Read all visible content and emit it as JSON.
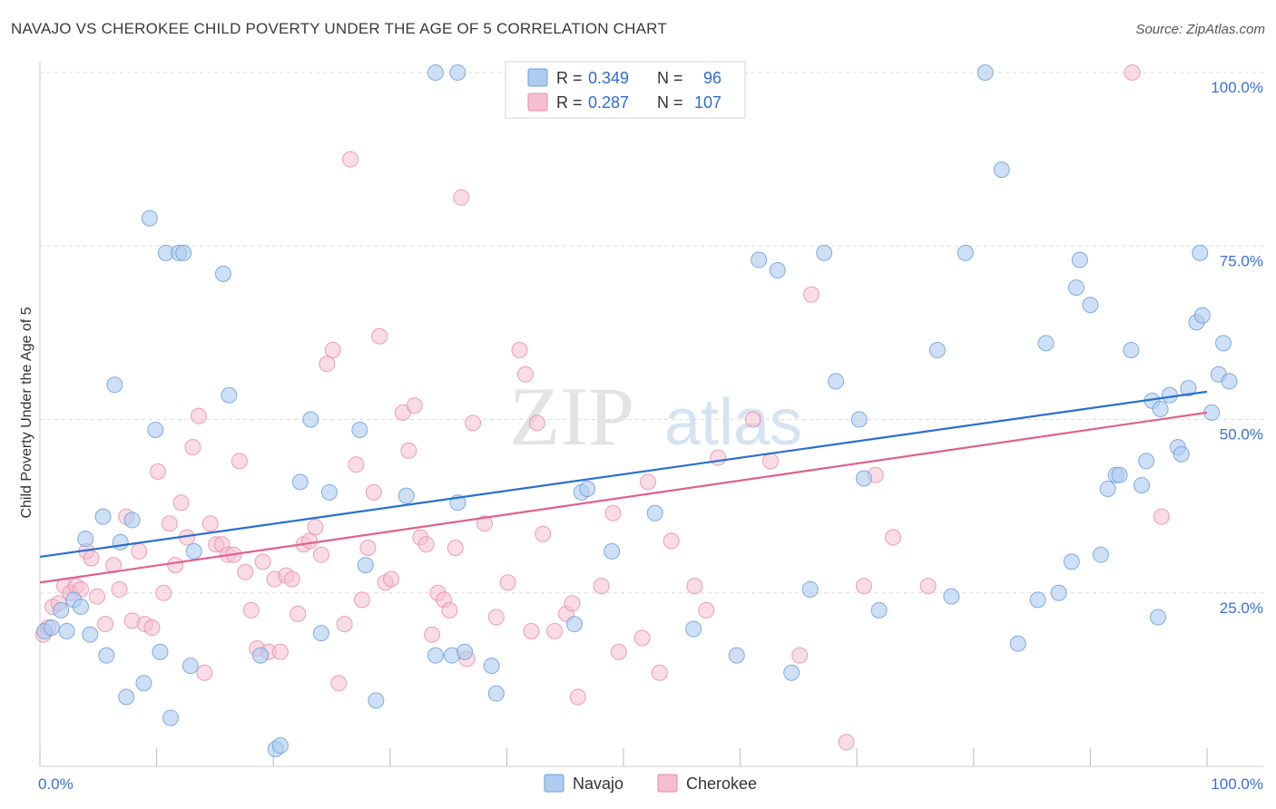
{
  "title": "NAVAJO VS CHEROKEE CHILD POVERTY UNDER THE AGE OF 5 CORRELATION CHART",
  "source": "Source: ZipAtlas.com",
  "watermark": {
    "zip": "ZIP",
    "atlas": "atlas"
  },
  "colors": {
    "navajo_fill": "#aecbf0",
    "navajo_stroke": "#6f9fdc",
    "navajo_line": "#2a6fd0",
    "cherokee_fill": "#f6bfd0",
    "cherokee_stroke": "#e88aa8",
    "cherokee_line": "#e06090",
    "tick_label": "#3b6fd4",
    "grid": "#dddddd"
  },
  "legend": {
    "navajo": {
      "r_label": "R =",
      "r_value": "0.349",
      "n_label": "N =",
      "n_value": "96"
    },
    "cherokee": {
      "r_label": "R =",
      "r_value": "0.287",
      "n_label": "N =",
      "n_value": "107"
    }
  },
  "bottom_legend": [
    "Navajo",
    "Cherokee"
  ],
  "chart_data": {
    "type": "scatter",
    "title": "NAVAJO VS CHEROKEE CHILD POVERTY UNDER THE AGE OF 5 CORRELATION CHART",
    "xlabel": "",
    "ylabel": "Child Poverty Under the Age of 5",
    "xlim": [
      0,
      100
    ],
    "ylim": [
      0,
      100
    ],
    "x_tick_labels": [
      "0.0%",
      "100.0%"
    ],
    "y_ticks": [
      25,
      50,
      75,
      100
    ],
    "y_tick_labels": [
      "25.0%",
      "50.0%",
      "75.0%",
      "100.0%"
    ],
    "grid": true,
    "legend_position": "top-center",
    "series": [
      {
        "name": "Navajo",
        "trend": [
          [
            0,
            30.2
          ],
          [
            100,
            54.0
          ]
        ],
        "points": [
          [
            0.4,
            19.5
          ],
          [
            1.0,
            20.0
          ],
          [
            1.8,
            22.5
          ],
          [
            2.3,
            19.5
          ],
          [
            2.9,
            24.0
          ],
          [
            3.5,
            23.0
          ],
          [
            3.9,
            32.8
          ],
          [
            4.3,
            19.0
          ],
          [
            5.4,
            36.0
          ],
          [
            5.7,
            16.0
          ],
          [
            6.4,
            55.0
          ],
          [
            6.9,
            32.3
          ],
          [
            7.4,
            10.0
          ],
          [
            7.9,
            35.5
          ],
          [
            8.9,
            12.0
          ],
          [
            9.4,
            79.0
          ],
          [
            9.9,
            48.5
          ],
          [
            10.3,
            16.5
          ],
          [
            10.8,
            74.0
          ],
          [
            11.2,
            7.0
          ],
          [
            11.9,
            74.0
          ],
          [
            12.3,
            74.0
          ],
          [
            12.9,
            14.5
          ],
          [
            13.2,
            31.0
          ],
          [
            15.7,
            71.0
          ],
          [
            16.2,
            53.5
          ],
          [
            18.9,
            16.0
          ],
          [
            20.2,
            2.5
          ],
          [
            20.6,
            3.0
          ],
          [
            22.3,
            41.0
          ],
          [
            23.2,
            50.0
          ],
          [
            24.1,
            19.2
          ],
          [
            24.8,
            39.5
          ],
          [
            27.4,
            48.5
          ],
          [
            27.9,
            29.0
          ],
          [
            28.8,
            9.5
          ],
          [
            31.4,
            39.0
          ],
          [
            33.9,
            100.0
          ],
          [
            33.9,
            16.0
          ],
          [
            35.3,
            16.0
          ],
          [
            35.8,
            100.0
          ],
          [
            35.8,
            38.0
          ],
          [
            36.4,
            16.5
          ],
          [
            38.7,
            14.5
          ],
          [
            39.1,
            10.5
          ],
          [
            45.8,
            20.5
          ],
          [
            46.4,
            39.5
          ],
          [
            46.9,
            40.0
          ],
          [
            49.0,
            31.0
          ],
          [
            52.7,
            36.5
          ],
          [
            56.0,
            19.8
          ],
          [
            61.6,
            73.0
          ],
          [
            63.2,
            71.5
          ],
          [
            64.4,
            13.5
          ],
          [
            66.0,
            25.5
          ],
          [
            67.2,
            74.0
          ],
          [
            68.2,
            55.5
          ],
          [
            70.2,
            50.0
          ],
          [
            70.6,
            41.5
          ],
          [
            71.9,
            22.5
          ],
          [
            76.9,
            60.0
          ],
          [
            78.1,
            24.5
          ],
          [
            79.3,
            74.0
          ],
          [
            81.0,
            100.0
          ],
          [
            82.4,
            86.0
          ],
          [
            83.8,
            17.7
          ],
          [
            85.5,
            24.0
          ],
          [
            86.2,
            61.0
          ],
          [
            87.3,
            25.0
          ],
          [
            88.4,
            29.5
          ],
          [
            88.8,
            69.0
          ],
          [
            89.1,
            73.0
          ],
          [
            90.0,
            66.5
          ],
          [
            90.9,
            30.5
          ],
          [
            91.5,
            40.0
          ],
          [
            92.2,
            42.0
          ],
          [
            92.5,
            42.0
          ],
          [
            93.5,
            60.0
          ],
          [
            94.4,
            40.5
          ],
          [
            94.8,
            44.0
          ],
          [
            95.3,
            52.7
          ],
          [
            95.8,
            21.5
          ],
          [
            96.0,
            51.5
          ],
          [
            96.8,
            53.5
          ],
          [
            97.5,
            46.0
          ],
          [
            97.8,
            45.0
          ],
          [
            98.4,
            54.5
          ],
          [
            99.1,
            64.0
          ],
          [
            99.4,
            74.0
          ],
          [
            99.6,
            65.0
          ],
          [
            100.4,
            51.0
          ],
          [
            101.0,
            56.5
          ],
          [
            101.4,
            61.0
          ],
          [
            101.9,
            55.5
          ],
          [
            42.1,
            100.0
          ],
          [
            59.7,
            16.0
          ]
        ]
      },
      {
        "name": "Cherokee",
        "trend": [
          [
            0,
            26.5
          ],
          [
            100,
            51.0
          ]
        ],
        "points": [
          [
            0.3,
            19.0
          ],
          [
            0.7,
            20.0
          ],
          [
            1.1,
            23.0
          ],
          [
            1.6,
            23.5
          ],
          [
            2.1,
            26.0
          ],
          [
            2.6,
            25.0
          ],
          [
            3.1,
            26.0
          ],
          [
            3.5,
            25.5
          ],
          [
            4.0,
            31.0
          ],
          [
            4.4,
            30.0
          ],
          [
            4.9,
            24.5
          ],
          [
            5.6,
            20.5
          ],
          [
            6.3,
            29.0
          ],
          [
            6.8,
            25.5
          ],
          [
            7.4,
            36.0
          ],
          [
            7.9,
            21.0
          ],
          [
            8.5,
            31.0
          ],
          [
            9.0,
            20.5
          ],
          [
            9.6,
            20.0
          ],
          [
            10.1,
            42.5
          ],
          [
            10.6,
            25.0
          ],
          [
            11.1,
            35.0
          ],
          [
            11.6,
            29.0
          ],
          [
            12.1,
            38.0
          ],
          [
            12.6,
            33.0
          ],
          [
            13.1,
            46.0
          ],
          [
            13.6,
            50.5
          ],
          [
            14.1,
            13.5
          ],
          [
            14.6,
            35.0
          ],
          [
            15.1,
            32.0
          ],
          [
            15.6,
            32.0
          ],
          [
            16.1,
            30.5
          ],
          [
            16.6,
            30.5
          ],
          [
            17.1,
            44.0
          ],
          [
            17.6,
            28.0
          ],
          [
            18.1,
            22.5
          ],
          [
            18.6,
            17.0
          ],
          [
            19.1,
            29.5
          ],
          [
            19.6,
            16.5
          ],
          [
            20.1,
            27.0
          ],
          [
            20.6,
            16.5
          ],
          [
            21.1,
            27.5
          ],
          [
            21.6,
            27.0
          ],
          [
            22.1,
            22.0
          ],
          [
            22.6,
            32.0
          ],
          [
            23.1,
            32.5
          ],
          [
            23.6,
            34.5
          ],
          [
            24.1,
            30.5
          ],
          [
            24.6,
            58.0
          ],
          [
            25.1,
            60.0
          ],
          [
            25.6,
            12.0
          ],
          [
            26.1,
            20.5
          ],
          [
            26.6,
            87.5
          ],
          [
            27.1,
            43.5
          ],
          [
            27.6,
            24.0
          ],
          [
            28.1,
            31.5
          ],
          [
            28.6,
            39.5
          ],
          [
            29.1,
            62.0
          ],
          [
            29.6,
            26.5
          ],
          [
            30.1,
            27.0
          ],
          [
            31.1,
            51.0
          ],
          [
            31.6,
            45.5
          ],
          [
            32.1,
            52.0
          ],
          [
            32.6,
            33.0
          ],
          [
            33.1,
            32.0
          ],
          [
            33.6,
            19.0
          ],
          [
            34.1,
            25.0
          ],
          [
            34.6,
            24.0
          ],
          [
            35.1,
            22.5
          ],
          [
            35.6,
            31.5
          ],
          [
            36.1,
            82.0
          ],
          [
            36.6,
            15.5
          ],
          [
            37.1,
            49.5
          ],
          [
            38.1,
            35.0
          ],
          [
            39.1,
            21.5
          ],
          [
            40.1,
            26.5
          ],
          [
            41.1,
            60.0
          ],
          [
            41.6,
            56.5
          ],
          [
            42.1,
            19.5
          ],
          [
            42.6,
            49.5
          ],
          [
            43.1,
            33.5
          ],
          [
            44.1,
            19.5
          ],
          [
            45.1,
            22.0
          ],
          [
            45.6,
            23.5
          ],
          [
            46.1,
            10.0
          ],
          [
            48.1,
            26.0
          ],
          [
            49.1,
            36.5
          ],
          [
            49.6,
            16.5
          ],
          [
            51.6,
            18.5
          ],
          [
            52.1,
            41.0
          ],
          [
            53.1,
            13.5
          ],
          [
            54.1,
            32.5
          ],
          [
            55.1,
            100.0
          ],
          [
            56.1,
            26.0
          ],
          [
            57.1,
            22.5
          ],
          [
            58.1,
            44.5
          ],
          [
            61.1,
            50.0
          ],
          [
            62.6,
            44.0
          ],
          [
            65.1,
            16.0
          ],
          [
            66.1,
            68.0
          ],
          [
            69.1,
            3.5
          ],
          [
            70.6,
            26.0
          ],
          [
            71.6,
            42.0
          ],
          [
            73.1,
            33.0
          ],
          [
            76.1,
            26.0
          ],
          [
            93.6,
            100.0
          ],
          [
            96.1,
            36.0
          ]
        ]
      }
    ]
  }
}
